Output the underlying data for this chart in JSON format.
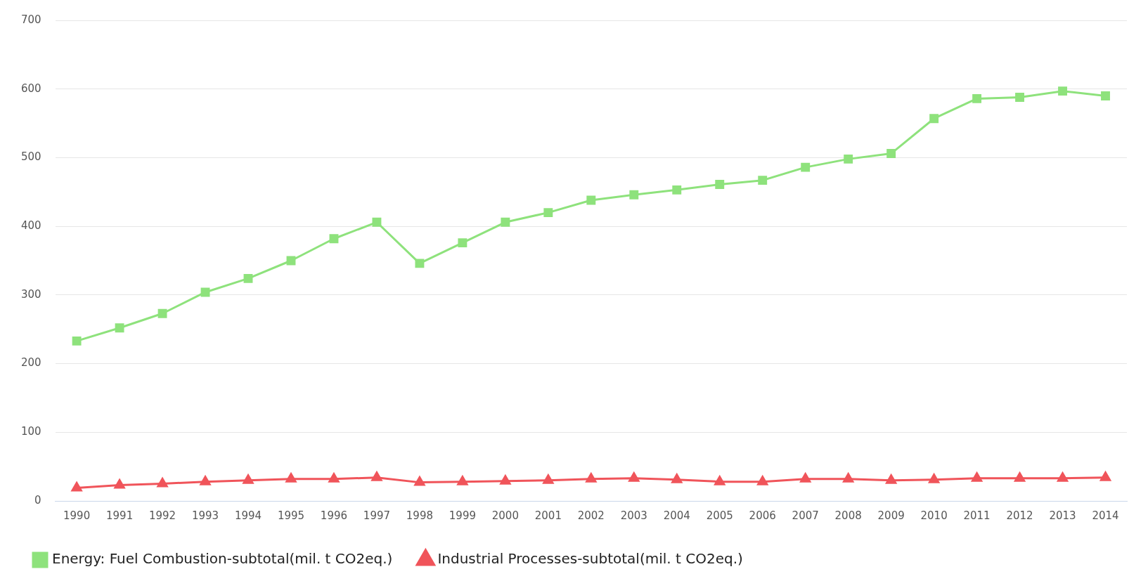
{
  "chart_data": {
    "type": "line",
    "categories": [
      "1990",
      "1991",
      "1992",
      "1993",
      "1994",
      "1995",
      "1996",
      "1997",
      "1998",
      "1999",
      "2000",
      "2001",
      "2002",
      "2003",
      "2004",
      "2005",
      "2006",
      "2007",
      "2008",
      "2009",
      "2010",
      "2011",
      "2012",
      "2013",
      "2014"
    ],
    "series": [
      {
        "name": "Energy: Fuel Combustion-subtotal(mil. t CO2eq.)",
        "color": "#8ee27c",
        "marker": "square",
        "values": [
          233,
          252,
          273,
          304,
          324,
          350,
          382,
          406,
          346,
          376,
          406,
          420,
          438,
          446,
          453,
          461,
          467,
          486,
          498,
          506,
          557,
          586,
          588,
          597,
          590
        ]
      },
      {
        "name": "Industrial Processes-subtotal(mil. t CO2eq.)",
        "color": "#f0545a",
        "marker": "triangle",
        "values": [
          19,
          23,
          25,
          28,
          30,
          32,
          32,
          34,
          27,
          28,
          29,
          30,
          32,
          33,
          31,
          28,
          28,
          32,
          32,
          30,
          31,
          33,
          33,
          33,
          34
        ]
      }
    ],
    "ylim": [
      0,
      700
    ],
    "yticks": [
      0,
      100,
      200,
      300,
      400,
      500,
      600,
      700
    ],
    "grid": "y",
    "legend": "bottom left",
    "line_style": "solid"
  }
}
